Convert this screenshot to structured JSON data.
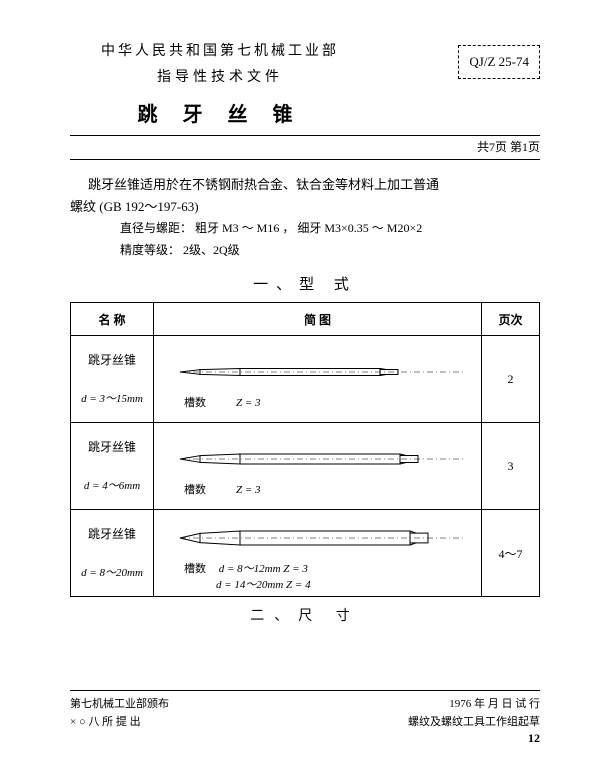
{
  "header": {
    "organization": "中华人民共和国第七机械工业部",
    "doc_type": "指导性技术文件",
    "title": "跳 牙 丝 锥",
    "code": "QJ/Z 25-74",
    "page_info": "共7页 第1页"
  },
  "intro": {
    "line1": "跳牙丝锥适用於在不锈钢耐热合金、钛合金等材料上加工普通",
    "line2": "螺纹 (GB 192～197-63)",
    "spec1_label": "直径与螺距：",
    "spec1a": "粗牙  M3 ～ M16",
    "spec1b": "，  细牙 M3×0.35 ～ M20×2",
    "spec2_label": "精度等级：",
    "spec2": "2级、2Q级"
  },
  "section1": "一、型 式",
  "table": {
    "headers": {
      "name": "名 称",
      "diagram": "简        图",
      "page": "页次"
    },
    "rows": [
      {
        "name": "跳牙丝锥",
        "dim": "d = 3～15mm",
        "groove_label": "槽数",
        "z": "Z = 3",
        "page": "2",
        "shank_w": 10,
        "body_len": 180,
        "body_h": 7
      },
      {
        "name": "跳牙丝锥",
        "dim": "d = 4～6mm",
        "groove_label": "槽数",
        "z": "Z = 3",
        "page": "3",
        "shank_w": 16,
        "body_len": 200,
        "body_h": 10
      },
      {
        "name": "跳牙丝锥",
        "dim": "d = 8～20mm",
        "groove_label": "槽数",
        "z_lines": [
          "d = 8～12mm   Z = 3",
          "d = 14～20mm   Z = 4"
        ],
        "page": "4～7",
        "shank_w": 22,
        "body_len": 210,
        "body_h": 14
      }
    ]
  },
  "section2": "二、尺 寸",
  "footer": {
    "left1": "第七机械工业部颁布",
    "right1": "1976 年  月  日    试 行",
    "left2": "× ○ 八 所 提 出",
    "right2": "螺纹及螺纹工具工作组起草",
    "pagenum": "12"
  },
  "colors": {
    "line": "#000000",
    "bg": "#ffffff"
  }
}
